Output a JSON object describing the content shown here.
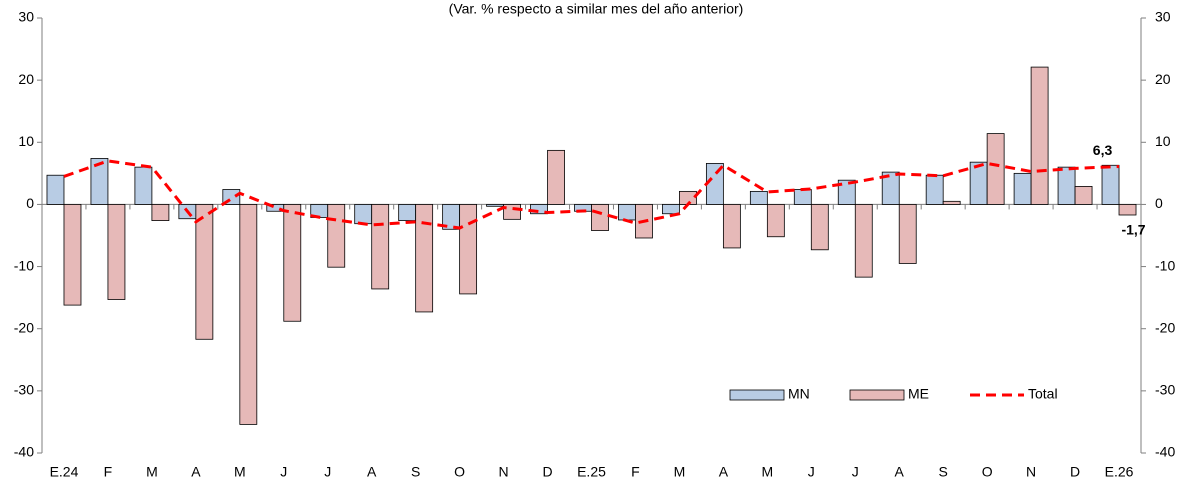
{
  "chart_data": {
    "type": "bar",
    "subtitle": "(Var. % respecto a similar mes del año anterior)",
    "categories": [
      "E.24",
      "F",
      "M",
      "A",
      "M",
      "J",
      "J",
      "A",
      "S",
      "O",
      "N",
      "D",
      "E.25",
      "F",
      "M",
      "A",
      "M",
      "J",
      "J",
      "A",
      "S",
      "O",
      "N",
      "D",
      "E.26"
    ],
    "series": [
      {
        "name": "MN",
        "type": "bar",
        "color": "#b8cce4",
        "values": [
          4.7,
          7.4,
          6.0,
          -2.3,
          2.4,
          -1.1,
          -2.1,
          -3.1,
          -2.6,
          -4.0,
          -0.3,
          -1.5,
          -1.1,
          -2.5,
          -1.5,
          6.6,
          2.1,
          2.4,
          3.9,
          5.2,
          4.7,
          6.8,
          5.0,
          6.0,
          6.3
        ],
        "value_labels": [
          null,
          null,
          null,
          null,
          null,
          null,
          null,
          null,
          null,
          null,
          null,
          null,
          null,
          null,
          null,
          null,
          null,
          null,
          null,
          null,
          null,
          null,
          null,
          null,
          "6,3"
        ]
      },
      {
        "name": "ME",
        "type": "bar",
        "color": "#e6b9b8",
        "values": [
          -16.2,
          -15.3,
          -2.6,
          -21.7,
          -35.4,
          -18.8,
          -10.1,
          -13.6,
          -17.3,
          -14.4,
          -2.4,
          8.7,
          -4.2,
          -5.4,
          2.1,
          -7.0,
          -5.2,
          -7.3,
          -11.7,
          -9.5,
          0.5,
          11.4,
          22.1,
          2.9,
          -1.7
        ],
        "value_labels": [
          null,
          null,
          null,
          null,
          null,
          null,
          null,
          null,
          null,
          null,
          null,
          null,
          null,
          null,
          null,
          null,
          null,
          null,
          null,
          null,
          null,
          null,
          null,
          null,
          "-1,7"
        ]
      },
      {
        "name": "Total",
        "type": "line",
        "color": "#ff0000",
        "values": [
          4.5,
          7.0,
          6.0,
          -2.8,
          1.8,
          -1.0,
          -2.3,
          -3.3,
          -2.8,
          -3.8,
          -0.5,
          -1.3,
          -1.0,
          -3.0,
          -1.5,
          6.3,
          2.0,
          2.5,
          3.6,
          4.9,
          4.6,
          6.6,
          5.3,
          5.8,
          6.1
        ]
      }
    ],
    "ylim": [
      -40,
      30
    ],
    "yticks": [
      -40,
      -30,
      -20,
      -10,
      0,
      10,
      20,
      30
    ],
    "y2lim": [
      -40,
      30
    ],
    "y2ticks": [
      -40,
      -30,
      -20,
      -10,
      0,
      10,
      20,
      30
    ],
    "legend": "lower right"
  }
}
